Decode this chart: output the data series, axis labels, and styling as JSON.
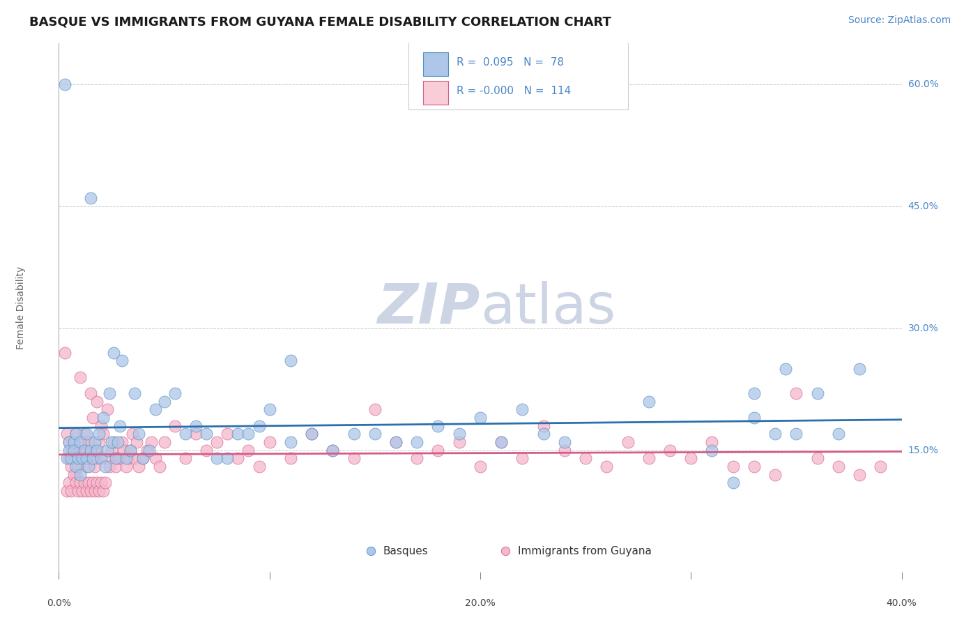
{
  "title": "BASQUE VS IMMIGRANTS FROM GUYANA FEMALE DISABILITY CORRELATION CHART",
  "source_text": "Source: ZipAtlas.com",
  "ylabel": "Female Disability",
  "xlim": [
    0.0,
    0.4
  ],
  "ylim": [
    0.0,
    0.65
  ],
  "xticks": [
    0.0,
    0.1,
    0.2,
    0.3,
    0.4
  ],
  "xtick_labels": [
    "0.0%",
    "",
    "20.0%",
    "",
    "40.0%"
  ],
  "yticks_right": [
    0.15,
    0.3,
    0.45,
    0.6
  ],
  "ytick_labels_right": [
    "15.0%",
    "30.0%",
    "45.0%",
    "60.0%"
  ],
  "basques": {
    "name": "Basques",
    "R": 0.095,
    "N": 78,
    "fill_color": "#aec6e8",
    "edge_color": "#4d8fbf",
    "line_color": "#2c6fad",
    "legend_fill": "#aec6e8",
    "x": [
      0.003,
      0.004,
      0.005,
      0.005,
      0.006,
      0.007,
      0.007,
      0.008,
      0.008,
      0.009,
      0.01,
      0.01,
      0.011,
      0.012,
      0.013,
      0.013,
      0.014,
      0.015,
      0.015,
      0.016,
      0.017,
      0.018,
      0.019,
      0.02,
      0.021,
      0.022,
      0.023,
      0.024,
      0.025,
      0.026,
      0.027,
      0.028,
      0.029,
      0.03,
      0.032,
      0.034,
      0.036,
      0.038,
      0.04,
      0.043,
      0.046,
      0.05,
      0.055,
      0.06,
      0.065,
      0.07,
      0.075,
      0.08,
      0.085,
      0.09,
      0.095,
      0.1,
      0.11,
      0.12,
      0.13,
      0.14,
      0.15,
      0.16,
      0.17,
      0.18,
      0.19,
      0.2,
      0.21,
      0.22,
      0.23,
      0.24,
      0.28,
      0.31,
      0.33,
      0.34,
      0.35,
      0.36,
      0.37,
      0.38,
      0.11,
      0.32,
      0.33,
      0.345
    ],
    "y": [
      0.6,
      0.14,
      0.16,
      0.15,
      0.14,
      0.16,
      0.15,
      0.13,
      0.17,
      0.14,
      0.12,
      0.16,
      0.14,
      0.15,
      0.14,
      0.17,
      0.13,
      0.46,
      0.15,
      0.14,
      0.16,
      0.15,
      0.17,
      0.14,
      0.19,
      0.13,
      0.15,
      0.22,
      0.16,
      0.27,
      0.14,
      0.16,
      0.18,
      0.26,
      0.14,
      0.15,
      0.22,
      0.17,
      0.14,
      0.15,
      0.2,
      0.21,
      0.22,
      0.17,
      0.18,
      0.17,
      0.14,
      0.14,
      0.17,
      0.17,
      0.18,
      0.2,
      0.16,
      0.17,
      0.15,
      0.17,
      0.17,
      0.16,
      0.16,
      0.18,
      0.17,
      0.19,
      0.16,
      0.2,
      0.17,
      0.16,
      0.21,
      0.15,
      0.19,
      0.17,
      0.17,
      0.22,
      0.17,
      0.25,
      0.26,
      0.11,
      0.22,
      0.25
    ]
  },
  "immigrants": {
    "name": "Immigrants from Guyana",
    "R": -0.0,
    "N": 114,
    "fill_color": "#f5b8cb",
    "edge_color": "#d45c8a",
    "line_color": "#d45c8a",
    "legend_fill": "#f9cdd8",
    "x": [
      0.003,
      0.004,
      0.005,
      0.005,
      0.006,
      0.006,
      0.007,
      0.007,
      0.008,
      0.008,
      0.009,
      0.009,
      0.01,
      0.01,
      0.011,
      0.011,
      0.012,
      0.012,
      0.013,
      0.013,
      0.014,
      0.014,
      0.015,
      0.015,
      0.016,
      0.016,
      0.017,
      0.017,
      0.018,
      0.018,
      0.019,
      0.02,
      0.021,
      0.022,
      0.023,
      0.024,
      0.025,
      0.026,
      0.027,
      0.028,
      0.029,
      0.03,
      0.031,
      0.032,
      0.033,
      0.034,
      0.035,
      0.036,
      0.037,
      0.038,
      0.04,
      0.042,
      0.044,
      0.046,
      0.048,
      0.05,
      0.055,
      0.06,
      0.065,
      0.07,
      0.075,
      0.08,
      0.085,
      0.09,
      0.095,
      0.1,
      0.11,
      0.12,
      0.13,
      0.14,
      0.15,
      0.16,
      0.17,
      0.18,
      0.19,
      0.2,
      0.21,
      0.22,
      0.23,
      0.24,
      0.25,
      0.26,
      0.27,
      0.28,
      0.29,
      0.3,
      0.31,
      0.32,
      0.33,
      0.34,
      0.35,
      0.36,
      0.37,
      0.38,
      0.39,
      0.004,
      0.005,
      0.006,
      0.007,
      0.008,
      0.009,
      0.01,
      0.011,
      0.012,
      0.013,
      0.014,
      0.015,
      0.016,
      0.017,
      0.018,
      0.019,
      0.02,
      0.021,
      0.022
    ],
    "y": [
      0.27,
      0.17,
      0.14,
      0.16,
      0.15,
      0.13,
      0.14,
      0.16,
      0.12,
      0.17,
      0.15,
      0.13,
      0.24,
      0.15,
      0.14,
      0.16,
      0.15,
      0.17,
      0.13,
      0.15,
      0.14,
      0.16,
      0.22,
      0.14,
      0.19,
      0.14,
      0.15,
      0.13,
      0.21,
      0.14,
      0.16,
      0.18,
      0.17,
      0.14,
      0.2,
      0.13,
      0.15,
      0.16,
      0.13,
      0.14,
      0.14,
      0.16,
      0.15,
      0.13,
      0.14,
      0.15,
      0.17,
      0.14,
      0.16,
      0.13,
      0.14,
      0.15,
      0.16,
      0.14,
      0.13,
      0.16,
      0.18,
      0.14,
      0.17,
      0.15,
      0.16,
      0.17,
      0.14,
      0.15,
      0.13,
      0.16,
      0.14,
      0.17,
      0.15,
      0.14,
      0.2,
      0.16,
      0.14,
      0.15,
      0.16,
      0.13,
      0.16,
      0.14,
      0.18,
      0.15,
      0.14,
      0.13,
      0.16,
      0.14,
      0.15,
      0.14,
      0.16,
      0.13,
      0.13,
      0.12,
      0.22,
      0.14,
      0.13,
      0.12,
      0.13,
      0.1,
      0.11,
      0.1,
      0.12,
      0.11,
      0.1,
      0.11,
      0.1,
      0.11,
      0.1,
      0.11,
      0.1,
      0.11,
      0.1,
      0.11,
      0.1,
      0.11,
      0.1,
      0.11
    ]
  },
  "background_color": "#ffffff",
  "grid_color": "#bbbbbb",
  "watermark_color": "#cdd5e4",
  "title_fontsize": 13,
  "source_fontsize": 10,
  "ylabel_fontsize": 10,
  "tick_fontsize": 10,
  "legend_fontsize": 11
}
